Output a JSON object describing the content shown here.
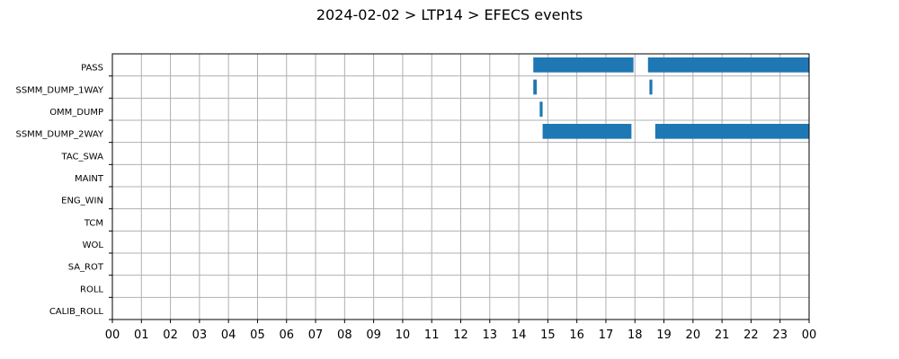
{
  "chart_data": {
    "type": "bar",
    "orientation": "horizontal-timeline",
    "title": "2024-02-02 > LTP14 > EFECS events",
    "xlabel": "",
    "ylabel": "",
    "xlim": [
      0,
      24
    ],
    "x_tick_labels": [
      "00",
      "01",
      "02",
      "03",
      "04",
      "05",
      "06",
      "07",
      "08",
      "09",
      "10",
      "11",
      "12",
      "13",
      "14",
      "15",
      "16",
      "17",
      "18",
      "19",
      "20",
      "21",
      "22",
      "23",
      "00"
    ],
    "categories": [
      "PASS",
      "SSMM_DUMP_1WAY",
      "OMM_DUMP",
      "SSMM_DUMP_2WAY",
      "TAC_SWA",
      "MAINT",
      "ENG_WIN",
      "TCM",
      "WOL",
      "SA_ROT",
      "ROLL",
      "CALIB_ROLL"
    ],
    "grid": true,
    "bar_color": "#1f77b4",
    "events": [
      {
        "category": "PASS",
        "start": 14.5,
        "end": 17.95
      },
      {
        "category": "PASS",
        "start": 18.45,
        "end": 24.0
      },
      {
        "category": "SSMM_DUMP_1WAY",
        "start": 14.5,
        "end": 14.62
      },
      {
        "category": "SSMM_DUMP_1WAY",
        "start": 18.5,
        "end": 18.6
      },
      {
        "category": "OMM_DUMP",
        "start": 14.72,
        "end": 14.82
      },
      {
        "category": "SSMM_DUMP_2WAY",
        "start": 14.82,
        "end": 17.88
      },
      {
        "category": "SSMM_DUMP_2WAY",
        "start": 18.7,
        "end": 24.0
      }
    ]
  }
}
